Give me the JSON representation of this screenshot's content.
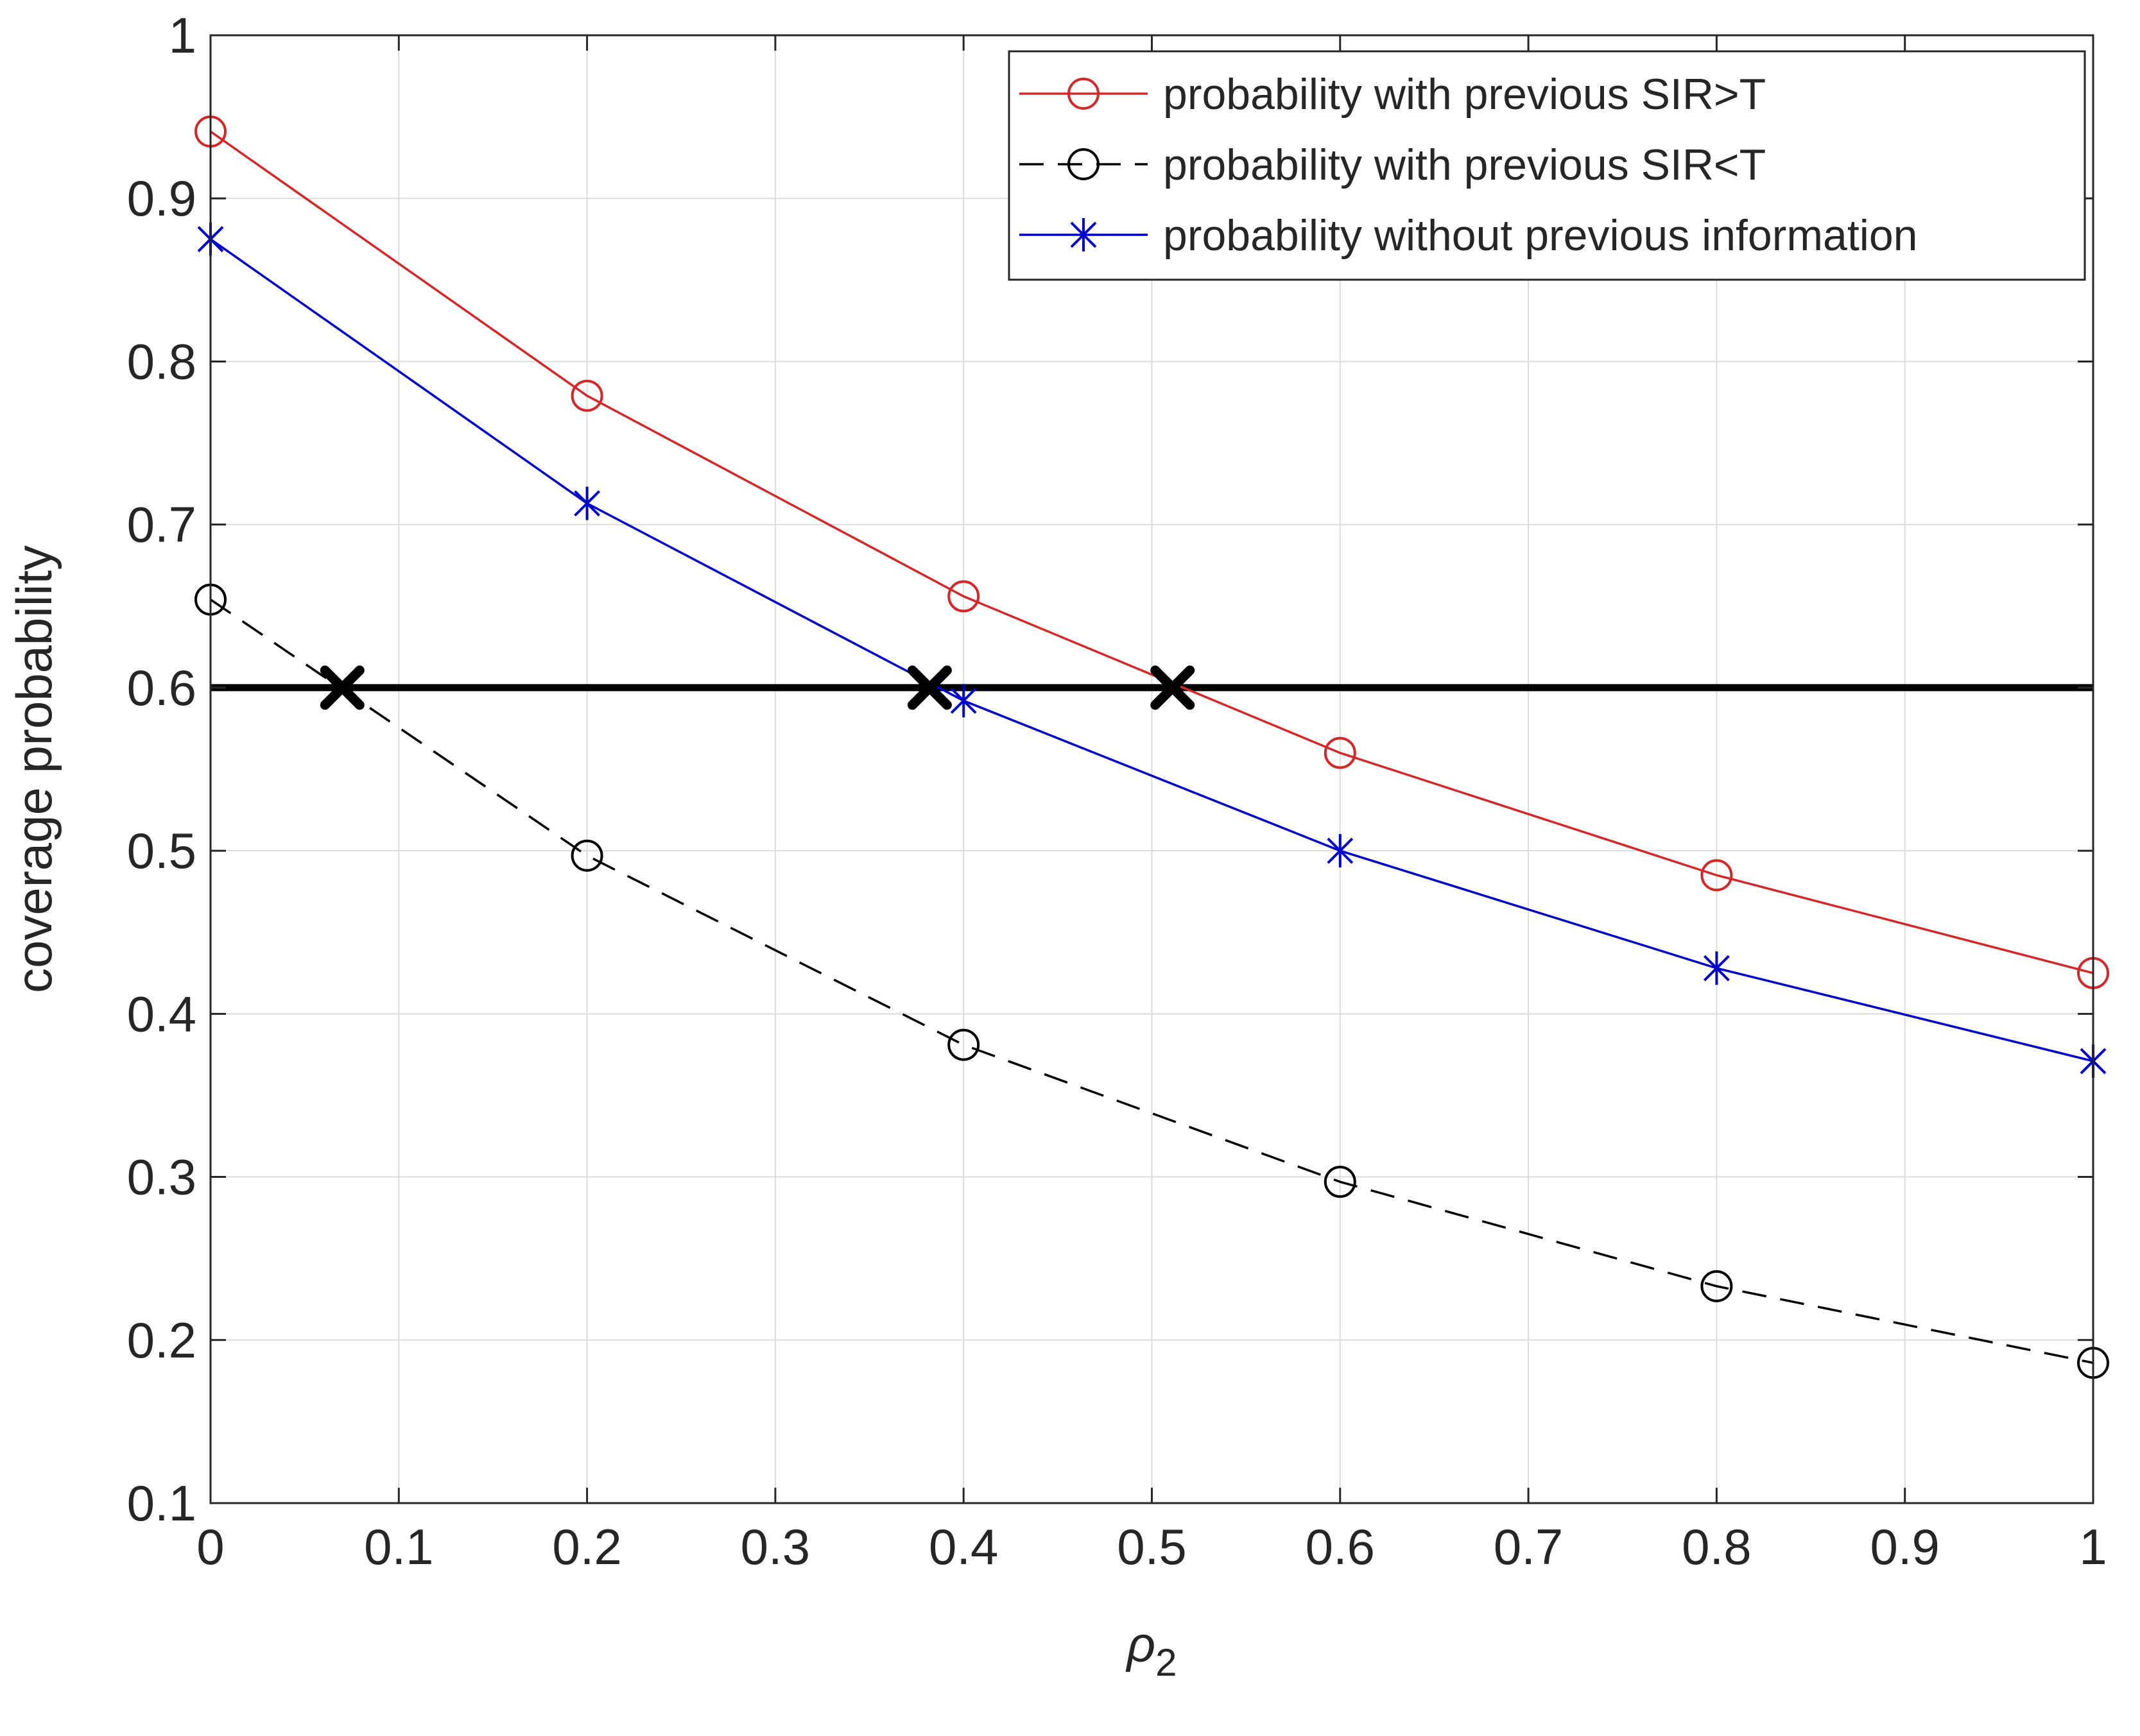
{
  "chart_data": {
    "type": "line",
    "title": "",
    "xlabel": "ρ",
    "xlabel_subscript": "2",
    "ylabel": "coverage probability",
    "xlim": [
      0,
      1
    ],
    "ylim": [
      0.1,
      1
    ],
    "xticks": [
      0,
      0.1,
      0.2,
      0.3,
      0.4,
      0.5,
      0.6,
      0.7,
      0.8,
      0.9,
      1
    ],
    "xtick_labels": [
      "0",
      "0.1",
      "0.2",
      "0.3",
      "0.4",
      "0.5",
      "0.6",
      "0.7",
      "0.8",
      "0.9",
      "1"
    ],
    "yticks": [
      0.1,
      0.2,
      0.3,
      0.4,
      0.5,
      0.6,
      0.7,
      0.8,
      0.9,
      1
    ],
    "ytick_labels": [
      "0.1",
      "0.2",
      "0.3",
      "0.4",
      "0.5",
      "0.6",
      "0.7",
      "0.8",
      "0.9",
      "1"
    ],
    "grid": true,
    "legend_position": "top-right",
    "x": [
      0,
      0.2,
      0.4,
      0.6,
      0.8,
      1
    ],
    "series": [
      {
        "name": "probability with previous SIR>T",
        "values": [
          0.941,
          0.779,
          0.656,
          0.56,
          0.485,
          0.425
        ],
        "color": "#d62728",
        "marker": "circle",
        "line_style": "solid"
      },
      {
        "name": "probability with previous SIR<T",
        "values": [
          0.654,
          0.497,
          0.381,
          0.297,
          0.233,
          0.186
        ],
        "color": "#000000",
        "marker": "circle",
        "line_style": "dashed"
      },
      {
        "name": "probability without previous information",
        "values": [
          0.875,
          0.713,
          0.592,
          0.5,
          0.428,
          0.371
        ],
        "color": "#0000cc",
        "marker": "asterisk",
        "line_style": "solid"
      }
    ],
    "threshold": {
      "value": 0.6,
      "color": "#000000"
    },
    "intersections": [
      {
        "x": 0.07,
        "y": 0.6
      },
      {
        "x": 0.382,
        "y": 0.6
      },
      {
        "x": 0.511,
        "y": 0.6
      }
    ]
  }
}
